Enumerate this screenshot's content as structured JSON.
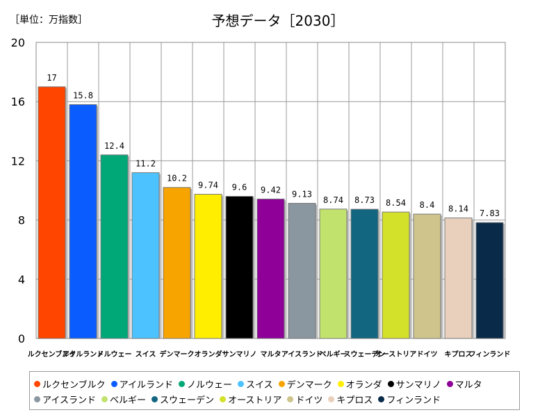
{
  "header": {
    "unit": "［単位：万指数］",
    "title": "予想データ［2030］"
  },
  "chart_data": {
    "type": "bar",
    "title": "予想データ［2030］",
    "ylabel": "［単位：万指数］",
    "ylim": [
      0,
      20
    ],
    "yticks": [
      0,
      4,
      8,
      12,
      16,
      20
    ],
    "grid": true,
    "legend_position": "bottom",
    "categories": [
      "ルクセンブルク",
      "アイルランド",
      "ノルウェー",
      "スイス",
      "デンマーク",
      "オランダ",
      "サンマリノ",
      "マルタ",
      "アイスランド",
      "ベルギー",
      "スウェーデン",
      "オーストリア",
      "ドイツ",
      "キプロス",
      "フィンランド"
    ],
    "values": [
      17,
      15.8,
      12.4,
      11.2,
      10.2,
      9.74,
      9.6,
      9.42,
      9.13,
      8.74,
      8.73,
      8.54,
      8.4,
      8.14,
      7.83
    ],
    "value_labels": [
      "17",
      "15.8",
      "12.4",
      "11.2",
      "10.2",
      "9.74",
      "9.6",
      "9.42",
      "9.13",
      "8.74",
      "8.73",
      "8.54",
      "8.4",
      "8.14",
      "7.83"
    ],
    "colors": [
      "#ff4500",
      "#0a5cff",
      "#00a878",
      "#4cc3ff",
      "#f7a400",
      "#ffee00",
      "#000000",
      "#8e0098",
      "#8a96a0",
      "#c2e26e",
      "#126680",
      "#d4e12a",
      "#cec48c",
      "#e8d0bc",
      "#0a2a4a"
    ]
  }
}
